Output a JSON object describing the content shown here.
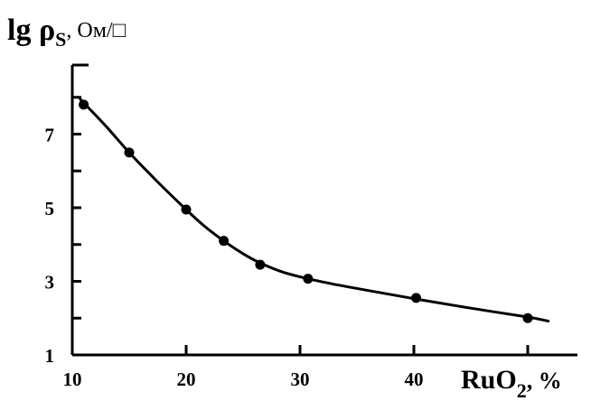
{
  "chart_data": {
    "type": "line",
    "title": "",
    "ylabel": {
      "main": "lg ρ",
      "sub": "S",
      "unit": ", Ом/□"
    },
    "xlabel": {
      "main": "RuO",
      "sub": "2",
      "unit": ", %"
    },
    "xlim": [
      10,
      51
    ],
    "ylim": [
      1,
      9
    ],
    "x_ticks": [
      10,
      20,
      30,
      40
    ],
    "y_ticks": [
      1,
      3,
      5,
      7
    ],
    "grid": false,
    "series": [
      {
        "points": [
          {
            "x": 11,
            "y": 7.8
          },
          {
            "x": 15,
            "y": 6.5
          },
          {
            "x": 20,
            "y": 4.95
          },
          {
            "x": 23.3,
            "y": 4.1
          },
          {
            "x": 26.5,
            "y": 3.45
          },
          {
            "x": 30.7,
            "y": 3.07
          },
          {
            "x": 40.2,
            "y": 2.55
          },
          {
            "x": 50,
            "y": 2.0
          }
        ],
        "fit_curve": [
          {
            "x": 10.7,
            "y": 7.95
          },
          {
            "x": 13,
            "y": 7.2
          },
          {
            "x": 15,
            "y": 6.5
          },
          {
            "x": 17.5,
            "y": 5.7
          },
          {
            "x": 20,
            "y": 4.95
          },
          {
            "x": 21.6,
            "y": 4.5
          },
          {
            "x": 23.3,
            "y": 4.1
          },
          {
            "x": 25,
            "y": 3.75
          },
          {
            "x": 26.5,
            "y": 3.5
          },
          {
            "x": 28.5,
            "y": 3.25
          },
          {
            "x": 30.7,
            "y": 3.07
          },
          {
            "x": 33,
            "y": 2.92
          },
          {
            "x": 36,
            "y": 2.75
          },
          {
            "x": 40.2,
            "y": 2.52
          },
          {
            "x": 45,
            "y": 2.27
          },
          {
            "x": 50,
            "y": 2.03
          },
          {
            "x": 51.8,
            "y": 1.92
          }
        ]
      }
    ]
  }
}
